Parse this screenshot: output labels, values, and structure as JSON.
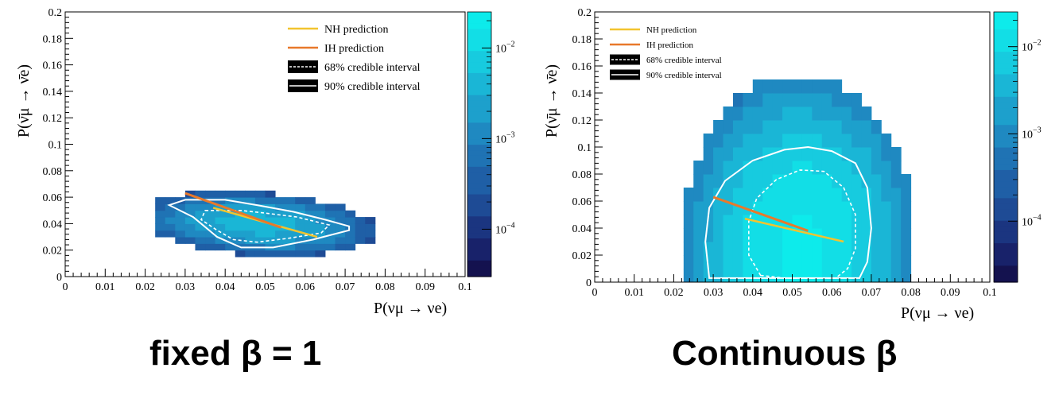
{
  "captions": {
    "left": "fixed β = 1",
    "right": "Continuous β"
  },
  "palette": [
    "#14124f",
    "#18226a",
    "#1b3580",
    "#1e4b95",
    "#1f5fa6",
    "#1f73b4",
    "#1f89c1",
    "#1da0cc",
    "#1ab6d6",
    "#17cbdf",
    "#12dee6",
    "#0debeb"
  ],
  "colors": {
    "nh": "#f2c42f",
    "ih": "#e8792b",
    "contour": "#ffffff"
  },
  "chart_data": [
    {
      "type": "heatmap",
      "caption": "fixed β = 1",
      "xlabel": "P(ν_μ → ν_e)",
      "ylabel": "P(ν̄_μ → ν̄_e)",
      "xlim": [
        0,
        0.1
      ],
      "ylim": [
        0,
        0.2
      ],
      "xticks": [
        "0",
        "0.01",
        "0.02",
        "0.03",
        "0.04",
        "0.05",
        "0.06",
        "0.07",
        "0.08",
        "0.09",
        "0.1"
      ],
      "yticks": [
        "0",
        "0.02",
        "0.04",
        "0.06",
        "0.08",
        "0.1",
        "0.12",
        "0.14",
        "0.16",
        "0.18",
        "0.2"
      ],
      "colorbar": {
        "scale": "log",
        "ticks": [
          "10^{-2}",
          "10^{-3}",
          "10^{-4}"
        ],
        "tick_values": [
          0.01,
          0.001,
          0.0001
        ],
        "range": [
          3e-05,
          0.025
        ]
      },
      "legend": {
        "position": "top-right",
        "entries": [
          {
            "style": "nh",
            "label": "NH prediction"
          },
          {
            "style": "ih",
            "label": "IH prediction"
          },
          {
            "style": "box-dashed",
            "label": "68% credible interval"
          },
          {
            "style": "box-solid",
            "label": "90% credible interval"
          }
        ]
      },
      "density": {
        "shape": "ellipse",
        "cx": 0.048,
        "cy": 0.04,
        "sx": 0.013,
        "sy": 0.0095,
        "tilt": -0.22,
        "peak": 0.004,
        "bin_x": 0.0025,
        "bin_y": 0.005,
        "extent": [
          [
            0.0225,
            0.08
          ],
          [
            0.015,
            0.07
          ]
        ],
        "cut": 2.4
      },
      "nh_line": [
        [
          0.037,
          0.052
        ],
        [
          0.063,
          0.03
        ]
      ],
      "ih_line": [
        [
          0.03,
          0.063
        ],
        [
          0.054,
          0.037
        ]
      ],
      "contour_90": [
        [
          0.026,
          0.054
        ],
        [
          0.03,
          0.058
        ],
        [
          0.04,
          0.058
        ],
        [
          0.048,
          0.054
        ],
        [
          0.057,
          0.049
        ],
        [
          0.065,
          0.043
        ],
        [
          0.071,
          0.038
        ],
        [
          0.071,
          0.035
        ],
        [
          0.062,
          0.028
        ],
        [
          0.052,
          0.022
        ],
        [
          0.044,
          0.022
        ],
        [
          0.038,
          0.03
        ],
        [
          0.032,
          0.045
        ]
      ],
      "contour_68": [
        [
          0.035,
          0.05
        ],
        [
          0.044,
          0.05
        ],
        [
          0.05,
          0.048
        ],
        [
          0.058,
          0.045
        ],
        [
          0.066,
          0.039
        ],
        [
          0.064,
          0.033
        ],
        [
          0.056,
          0.029
        ],
        [
          0.048,
          0.026
        ],
        [
          0.042,
          0.028
        ],
        [
          0.038,
          0.035
        ],
        [
          0.034,
          0.043
        ]
      ]
    },
    {
      "type": "heatmap",
      "caption": "Continuous β",
      "xlabel": "P(ν_μ → ν_e)",
      "ylabel": "P(ν̄_μ → ν̄_e)",
      "xlim": [
        0,
        0.1
      ],
      "ylim": [
        0,
        0.2
      ],
      "xticks": [
        "0",
        "0.01",
        "0.02",
        "0.03",
        "0.04",
        "0.05",
        "0.06",
        "0.07",
        "0.08",
        "0.09",
        "0.1"
      ],
      "yticks": [
        "0",
        "0.02",
        "0.04",
        "0.06",
        "0.08",
        "0.1",
        "0.12",
        "0.14",
        "0.16",
        "0.18",
        "0.2"
      ],
      "colorbar": {
        "scale": "log",
        "ticks": [
          "10^{-2}",
          "10^{-3}",
          "10^{-4}"
        ],
        "tick_values": [
          0.01,
          0.001,
          0.0001
        ],
        "range": [
          2e-05,
          0.025
        ]
      },
      "legend": {
        "position": "top-left",
        "entries": [
          {
            "style": "nh",
            "label": "NH prediction"
          },
          {
            "style": "ih",
            "label": "IH prediction"
          },
          {
            "style": "box-dashed",
            "label": "68% credible interval"
          },
          {
            "style": "box-solid",
            "label": "90% credible interval"
          }
        ]
      },
      "density": {
        "shape": "dome",
        "cx": 0.052,
        "cy": 0.025,
        "sx": 0.0115,
        "sy": 0.05,
        "tilt": 0,
        "peak": 0.02,
        "bin_x": 0.0025,
        "bin_y": 0.01,
        "extent": [
          [
            0.0225,
            0.08
          ],
          [
            0,
            0.19
          ]
        ],
        "cut": 2.6
      },
      "nh_line": [
        [
          0.038,
          0.047
        ],
        [
          0.063,
          0.03
        ]
      ],
      "ih_line": [
        [
          0.03,
          0.063
        ],
        [
          0.054,
          0.038
        ]
      ],
      "contour_90": [
        [
          0.029,
          0.003
        ],
        [
          0.028,
          0.03
        ],
        [
          0.029,
          0.055
        ],
        [
          0.033,
          0.075
        ],
        [
          0.04,
          0.09
        ],
        [
          0.048,
          0.098
        ],
        [
          0.054,
          0.1
        ],
        [
          0.06,
          0.097
        ],
        [
          0.066,
          0.088
        ],
        [
          0.069,
          0.07
        ],
        [
          0.07,
          0.04
        ],
        [
          0.069,
          0.015
        ],
        [
          0.067,
          0.003
        ]
      ],
      "contour_68": [
        [
          0.042,
          0.005
        ],
        [
          0.039,
          0.02
        ],
        [
          0.039,
          0.045
        ],
        [
          0.041,
          0.062
        ],
        [
          0.046,
          0.076
        ],
        [
          0.052,
          0.083
        ],
        [
          0.058,
          0.082
        ],
        [
          0.063,
          0.07
        ],
        [
          0.066,
          0.05
        ],
        [
          0.066,
          0.025
        ],
        [
          0.064,
          0.01
        ],
        [
          0.061,
          0.003
        ],
        [
          0.055,
          0.003
        ],
        [
          0.048,
          0.003
        ]
      ]
    }
  ]
}
